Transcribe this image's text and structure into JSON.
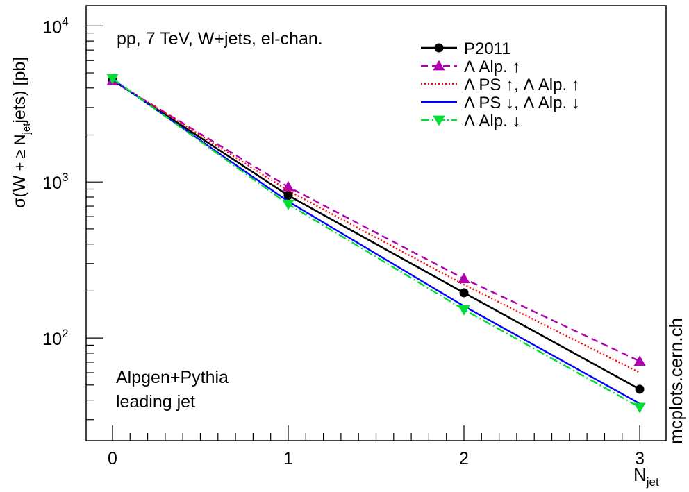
{
  "chart_data": {
    "type": "line",
    "ylog": true,
    "xlim": [
      -0.15,
      3.15
    ],
    "ylim": [
      22,
      13500
    ],
    "xticks": [
      0,
      1,
      2,
      3
    ],
    "xtick_labels": [
      "0",
      "1",
      "2",
      "3"
    ],
    "yticks": [
      100,
      1000,
      10000
    ],
    "ytick_labels": [
      {
        "base": "10",
        "exp": "2"
      },
      {
        "base": "10",
        "exp": "3"
      },
      {
        "base": "10",
        "exp": "4"
      }
    ],
    "xlabel": {
      "main": "N",
      "sub": "jet"
    },
    "ylabel": {
      "a": "σ(W",
      "sub1": "jet",
      "b": "jets) [pb]",
      "mid": " + ≥ N"
    },
    "annotations": {
      "top_left": "pp, 7 TeV, W+jets, el-chan.",
      "bottom_left_1": "Alpgen+Pythia",
      "bottom_left_2": "leading jet",
      "watermark": "mcplots.cern.ch"
    },
    "legend_position": "top-right",
    "series": [
      {
        "name": "P2011",
        "color": "#000000",
        "dash": "",
        "marker": "circle",
        "width": 2.6,
        "x": [
          0,
          1,
          2,
          3
        ],
        "y": [
          4500,
          820,
          195,
          47
        ]
      },
      {
        "name": "Λ Alp. ↑",
        "color": "#b000b0",
        "dash": "10,6",
        "marker": "triangle-up",
        "width": 2.4,
        "x": [
          0,
          1,
          2,
          3
        ],
        "y": [
          4450,
          930,
          240,
          71
        ]
      },
      {
        "name": "Λ PS ↑, Λ Alp. ↑",
        "color": "#ff0000",
        "dash": "2,3",
        "marker": "none",
        "width": 2.4,
        "x": [
          0,
          1,
          2,
          3
        ],
        "y": [
          4500,
          880,
          220,
          60
        ]
      },
      {
        "name": "Λ PS ↓, Λ Alp. ↓",
        "color": "#0000ff",
        "dash": "",
        "marker": "none",
        "width": 2.4,
        "x": [
          0,
          1,
          2,
          3
        ],
        "y": [
          4550,
          750,
          160,
          38
        ]
      },
      {
        "name": "Λ Alp. ↓",
        "color": "#00dd33",
        "dash": "12,4,2,4",
        "marker": "triangle-down",
        "width": 2.4,
        "x": [
          0,
          1,
          2,
          3
        ],
        "y": [
          4600,
          720,
          152,
          36
        ]
      }
    ]
  }
}
